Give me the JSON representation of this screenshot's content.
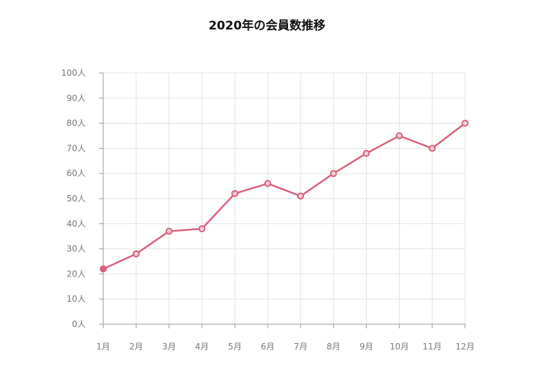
{
  "chart_data": {
    "type": "line",
    "title": "2020年の会員数推移",
    "categories": [
      "1月",
      "2月",
      "3月",
      "4月",
      "5月",
      "6月",
      "7月",
      "8月",
      "9月",
      "10月",
      "11月",
      "12月"
    ],
    "series": [
      {
        "values": [
          22,
          28,
          37,
          38,
          52,
          56,
          51,
          60,
          68,
          75,
          70,
          80
        ]
      }
    ],
    "y_tick_labels": [
      "0人",
      "10人",
      "20人",
      "30人",
      "40人",
      "50人",
      "60人",
      "70人",
      "80人",
      "90人",
      "100人"
    ],
    "ylim": [
      0,
      100
    ],
    "grid": true,
    "legend": "none",
    "colors": {
      "line": "#d9607a",
      "grid": "#e3e3e3",
      "axis": "#999999",
      "text": "#777777",
      "title": "#111111"
    }
  }
}
